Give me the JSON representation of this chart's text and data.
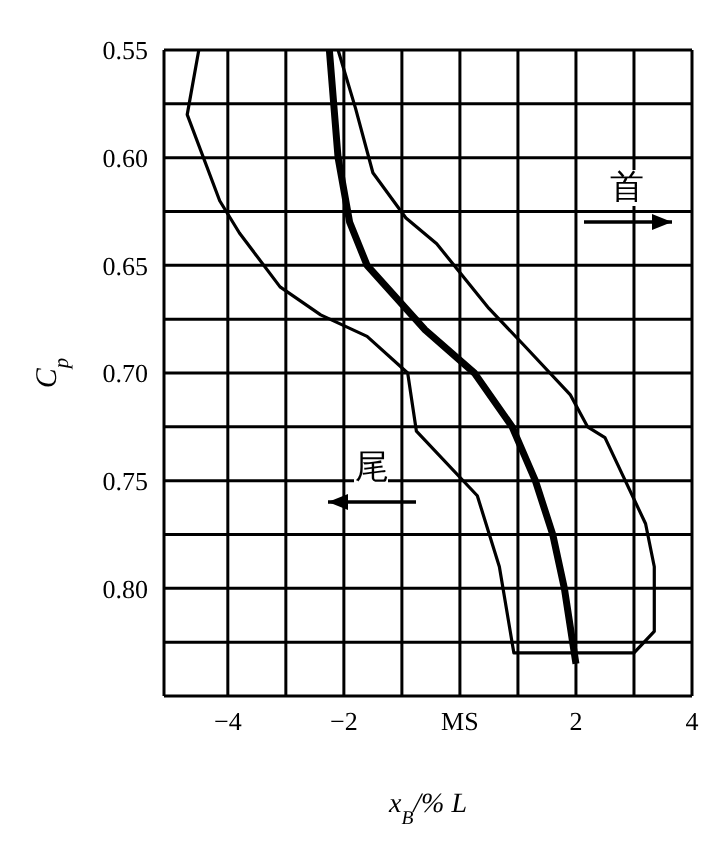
{
  "chart_data": {
    "type": "line",
    "xlabel": "x$_{B}$/% L",
    "ylabel": "C$_{p}$",
    "xlim": [
      -5.1,
      4
    ],
    "xticks": [
      {
        "value": -4,
        "label": "−4"
      },
      {
        "value": -3,
        "label": null
      },
      {
        "value": -2,
        "label": "−2"
      },
      {
        "value": -1,
        "label": null
      },
      {
        "value": 0,
        "label": "MS"
      },
      {
        "value": 1,
        "label": null
      },
      2,
      {
        "value": 3,
        "label": null
      },
      4
    ],
    "ylim": [
      0.85,
      0.55
    ],
    "yticks": [
      0.55,
      {
        "value": 0.575,
        "label": null
      },
      {
        "value": 0.6,
        "label": "0.60"
      },
      {
        "value": 0.625,
        "label": null
      },
      0.65,
      {
        "value": 0.675,
        "label": null
      },
      {
        "value": 0.7,
        "label": "0.70"
      },
      {
        "value": 0.725,
        "label": null
      },
      0.75,
      {
        "value": 0.775,
        "label": null
      },
      {
        "value": 0.8,
        "label": "0.80"
      },
      {
        "value": 0.825,
        "label": null
      }
    ],
    "grid": true,
    "marker": "none",
    "line_style": "solid",
    "series": [
      {
        "color": "#000000",
        "x": [
          -2.25,
          -2.1,
          -1.9,
          -1.6,
          -0.6,
          0.25,
          0.9,
          1.3,
          1.6,
          1.8,
          2.0
        ],
        "values": [
          0.55,
          0.6,
          0.63,
          0.65,
          0.68,
          0.7,
          0.725,
          0.75,
          0.775,
          0.8,
          0.835
        ]
      },
      {
        "color": "#000000",
        "x": [
          -4.5,
          -4.7,
          -4.14,
          -3.8,
          -3.1,
          -2.4,
          -1.6,
          -0.9,
          -0.75,
          0.3,
          0.68,
          0.93,
          3.0,
          3.35,
          3.35,
          3.2,
          2.5,
          2.2,
          1.9,
          1.1,
          0.5,
          -0.4,
          -0.93,
          -1.5,
          -1.8,
          -2.1
        ],
        "values": [
          0.55,
          0.58,
          0.62,
          0.635,
          0.66,
          0.673,
          0.683,
          0.7,
          0.727,
          0.757,
          0.79,
          0.83,
          0.83,
          0.82,
          0.79,
          0.77,
          0.73,
          0.725,
          0.71,
          0.687,
          0.67,
          0.64,
          0.628,
          0.607,
          0.577,
          0.55
        ]
      }
    ],
    "annotations": [
      "首",
      "尾"
    ]
  }
}
